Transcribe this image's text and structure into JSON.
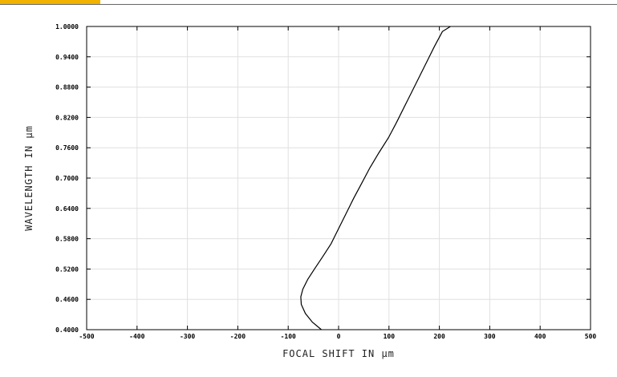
{
  "chart_data": {
    "type": "line",
    "xlabel": "FOCAL SHIFT IN µm",
    "ylabel": "WAVELENGTH IN µm",
    "xlim": [
      -500,
      500
    ],
    "ylim": [
      0.4,
      1.0
    ],
    "x_ticks": [
      -500,
      -400,
      -300,
      -200,
      -100,
      0,
      100,
      200,
      300,
      400,
      500
    ],
    "x_tick_labels": [
      "-500",
      "-400",
      "-300",
      "-200",
      "-100",
      "0",
      "100",
      "200",
      "300",
      "400",
      "500"
    ],
    "y_ticks": [
      0.4,
      0.46,
      0.52,
      0.58,
      0.64,
      0.7,
      0.76,
      0.82,
      0.88,
      0.94,
      1.0
    ],
    "y_tick_labels": [
      "0.4000",
      "0.4600",
      "0.5200",
      "0.5800",
      "0.6400",
      "0.7000",
      "0.7600",
      "0.8200",
      "0.8800",
      "0.9400",
      "1.0000"
    ],
    "grid": true,
    "series": [
      {
        "points": [
          [
            -34,
            0.4
          ],
          [
            -52,
            0.415
          ],
          [
            -66,
            0.432
          ],
          [
            -74,
            0.45
          ],
          [
            -75,
            0.465
          ],
          [
            -71,
            0.48
          ],
          [
            -61,
            0.5
          ],
          [
            -48,
            0.52
          ],
          [
            -31,
            0.545
          ],
          [
            -15,
            0.57
          ],
          [
            0,
            0.6
          ],
          [
            15,
            0.63
          ],
          [
            30,
            0.66
          ],
          [
            46,
            0.69
          ],
          [
            62,
            0.72
          ],
          [
            80,
            0.75
          ],
          [
            99,
            0.78
          ],
          [
            115,
            0.81
          ],
          [
            130,
            0.84
          ],
          [
            145,
            0.87
          ],
          [
            160,
            0.9
          ],
          [
            175,
            0.93
          ],
          [
            190,
            0.96
          ],
          [
            206,
            0.99
          ],
          [
            222,
            1.0
          ]
        ]
      }
    ]
  },
  "colors": {
    "accent": "#f2b200",
    "grid": "#e0e0e0",
    "frame": "#000000",
    "curve": "#000000"
  }
}
